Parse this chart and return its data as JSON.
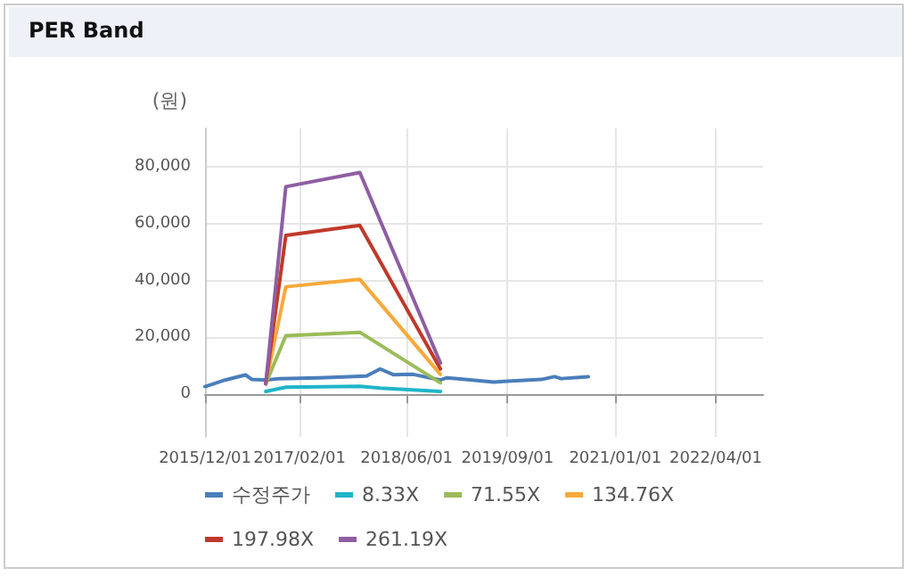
{
  "chart_data": {
    "type": "line",
    "title": "PER Band",
    "ylabel": "(원)",
    "xlim": [
      "2015-12-01",
      "2022-11-01"
    ],
    "xticks": [
      {
        "value": "2015-12-01",
        "label": "2015/12/01"
      },
      {
        "value": "2017-02-01",
        "label": "2017/02/01"
      },
      {
        "value": "2018-06-01",
        "label": "2018/06/01"
      },
      {
        "value": "2019-09-01",
        "label": "2019/09/01"
      },
      {
        "value": "2021-01-01",
        "label": "2021/01/01"
      },
      {
        "value": "2022-04-01",
        "label": "2022/04/01"
      }
    ],
    "ylim": [
      -15000,
      93500
    ],
    "yticks": [
      {
        "value": 0,
        "label": "0"
      },
      {
        "value": 20000,
        "label": "20,000"
      },
      {
        "value": 40000,
        "label": "40,000"
      },
      {
        "value": 60000,
        "label": "60,000"
      },
      {
        "value": 80000,
        "label": "80,000"
      }
    ],
    "grid": true,
    "legend": "bottom",
    "marker": "none",
    "line_style": "solid",
    "series": [
      {
        "name": "수정주가",
        "color": "#4a7ebb",
        "x": [
          "2015-12-01",
          "2016-03-01",
          "2016-06-01",
          "2016-07-01",
          "2016-09-01",
          "2016-11-01",
          "2017-05-01",
          "2017-12-01",
          "2018-02-01",
          "2018-04-01",
          "2018-07-01",
          "2018-11-01",
          "2018-12-01",
          "2019-07-01",
          "2019-09-01",
          "2020-02-01",
          "2020-04-01",
          "2020-05-01",
          "2020-09-01"
        ],
        "values": [
          2700,
          5000,
          6800,
          5200,
          5000,
          5500,
          5800,
          6400,
          8900,
          6900,
          7000,
          5000,
          5800,
          4300,
          4600,
          5200,
          6200,
          5500,
          6200
        ]
      },
      {
        "name": "8.33X",
        "color": "#1fb5c9",
        "x": [
          "2016-09-01",
          "2016-12-01",
          "2017-11-01",
          "2018-02-01",
          "2018-11-01"
        ],
        "values": [
          1000,
          2500,
          2800,
          2200,
          1000
        ]
      },
      {
        "name": "71.55X",
        "color": "#9bbb59",
        "x": [
          "2016-09-01",
          "2016-12-01",
          "2017-11-01",
          "2018-11-01"
        ],
        "values": [
          3700,
          20600,
          21800,
          4000
        ]
      },
      {
        "name": "134.76X",
        "color": "#f7a93b",
        "x": [
          "2016-09-01",
          "2016-12-01",
          "2017-11-01",
          "2018-11-01"
        ],
        "values": [
          3700,
          37800,
          40400,
          7000
        ]
      },
      {
        "name": "197.98X",
        "color": "#c0392b",
        "x": [
          "2016-09-01",
          "2016-12-01",
          "2017-11-01",
          "2018-11-01"
        ],
        "values": [
          3700,
          55900,
          59400,
          8900
        ]
      },
      {
        "name": "261.19X",
        "color": "#8e5ea2",
        "x": [
          "2016-09-01",
          "2016-12-01",
          "2017-11-01",
          "2018-11-01"
        ],
        "values": [
          3700,
          73000,
          78000,
          11000
        ]
      }
    ]
  }
}
